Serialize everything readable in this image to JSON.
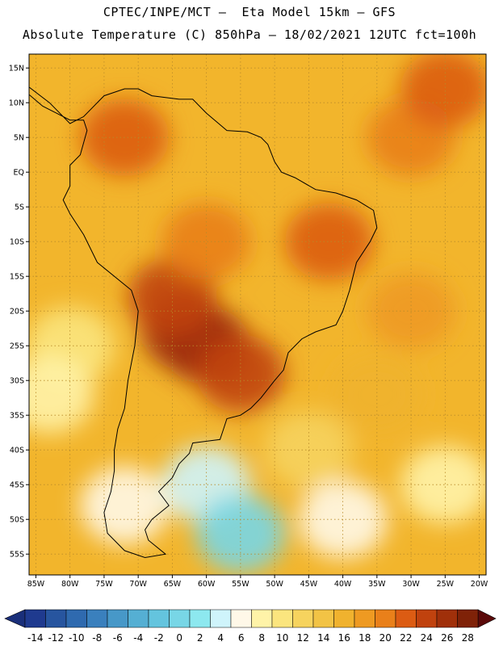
{
  "header": {
    "line1": "CPTEC/INPE/MCT –  Eta Model 15km – GFS",
    "line2": "Absolute Temperature (C) 850hPa – 18/02/2021 12UTC fct=100h"
  },
  "map": {
    "lon_range": [
      -86,
      -19
    ],
    "lat_range": [
      -58,
      17
    ],
    "lon_ticks": [
      {
        "value": -85,
        "label": "85W"
      },
      {
        "value": -80,
        "label": "80W"
      },
      {
        "value": -75,
        "label": "75W"
      },
      {
        "value": -70,
        "label": "70W"
      },
      {
        "value": -65,
        "label": "65W"
      },
      {
        "value": -60,
        "label": "60W"
      },
      {
        "value": -55,
        "label": "55W"
      },
      {
        "value": -50,
        "label": "50W"
      },
      {
        "value": -45,
        "label": "45W"
      },
      {
        "value": -40,
        "label": "40W"
      },
      {
        "value": -35,
        "label": "35W"
      },
      {
        "value": -30,
        "label": "30W"
      },
      {
        "value": -25,
        "label": "25W"
      },
      {
        "value": -20,
        "label": "20W"
      }
    ],
    "lat_ticks": [
      {
        "value": 15,
        "label": "15N"
      },
      {
        "value": 10,
        "label": "10N"
      },
      {
        "value": 5,
        "label": "5N"
      },
      {
        "value": 0,
        "label": "EQ"
      },
      {
        "value": -5,
        "label": "5S"
      },
      {
        "value": -10,
        "label": "10S"
      },
      {
        "value": -15,
        "label": "15S"
      },
      {
        "value": -20,
        "label": "20S"
      },
      {
        "value": -25,
        "label": "25S"
      },
      {
        "value": -30,
        "label": "30S"
      },
      {
        "value": -35,
        "label": "35S"
      },
      {
        "value": -40,
        "label": "40S"
      },
      {
        "value": -45,
        "label": "45S"
      },
      {
        "value": -50,
        "label": "50S"
      },
      {
        "value": -55,
        "label": "55S"
      }
    ],
    "grid": true,
    "coastline": [
      [
        -87,
        13
      ],
      [
        -83,
        10
      ],
      [
        -80,
        7
      ],
      [
        -78,
        8
      ],
      [
        -77,
        9
      ],
      [
        -75,
        11
      ],
      [
        -72,
        12
      ],
      [
        -70,
        12
      ],
      [
        -68,
        11
      ],
      [
        -64,
        10.5
      ],
      [
        -62,
        10.5
      ],
      [
        -60,
        8.5
      ],
      [
        -57,
        6
      ],
      [
        -54,
        5.8
      ],
      [
        -52,
        5
      ],
      [
        -51,
        4
      ],
      [
        -50,
        1.5
      ],
      [
        -49,
        0
      ],
      [
        -47,
        -0.8
      ],
      [
        -44,
        -2.5
      ],
      [
        -41,
        -3
      ],
      [
        -38,
        -4
      ],
      [
        -35.5,
        -5.5
      ],
      [
        -35,
        -8
      ],
      [
        -36,
        -10
      ],
      [
        -38,
        -13
      ],
      [
        -39,
        -17
      ],
      [
        -40,
        -20
      ],
      [
        -41,
        -22
      ],
      [
        -44,
        -23
      ],
      [
        -46,
        -24
      ],
      [
        -48,
        -26
      ],
      [
        -48.7,
        -28.5
      ],
      [
        -50,
        -30
      ],
      [
        -52,
        -32.5
      ],
      [
        -53.5,
        -34
      ],
      [
        -55,
        -35
      ],
      [
        -57,
        -35.5
      ],
      [
        -57.5,
        -37
      ],
      [
        -58,
        -38.5
      ],
      [
        -62,
        -39
      ],
      [
        -62.5,
        -40.5
      ],
      [
        -64,
        -42
      ],
      [
        -65,
        -44
      ],
      [
        -67,
        -46
      ],
      [
        -65.5,
        -48
      ],
      [
        -68,
        -50
      ],
      [
        -69,
        -51.5
      ],
      [
        -68.5,
        -53
      ],
      [
        -66,
        -55
      ],
      [
        -69,
        -55.5
      ],
      [
        -72,
        -54.5
      ],
      [
        -74.5,
        -52
      ],
      [
        -75,
        -49
      ],
      [
        -74,
        -46
      ],
      [
        -73.5,
        -43
      ],
      [
        -73.5,
        -40
      ],
      [
        -73,
        -37
      ],
      [
        -72,
        -34
      ],
      [
        -71.5,
        -30
      ],
      [
        -70.5,
        -25
      ],
      [
        -70,
        -20
      ],
      [
        -71,
        -17
      ],
      [
        -76,
        -13
      ],
      [
        -78,
        -9
      ],
      [
        -80,
        -6
      ],
      [
        -81,
        -4
      ],
      [
        -80,
        -2
      ],
      [
        -80,
        1
      ],
      [
        -78.5,
        2.5
      ],
      [
        -77.5,
        6
      ],
      [
        -78,
        7.5
      ],
      [
        -80,
        7.5
      ],
      [
        -82,
        8.5
      ],
      [
        -84,
        9.5
      ],
      [
        -87,
        12
      ]
    ]
  },
  "colorbar": {
    "labels": [
      "-14",
      "-12",
      "-10",
      "-8",
      "-6",
      "-4",
      "-2",
      "0",
      "2",
      "4",
      "6",
      "8",
      "10",
      "12",
      "14",
      "16",
      "18",
      "20",
      "22",
      "24",
      "26",
      "28"
    ],
    "colors": {
      "min_arrow": "#1a2f7a",
      "max_arrow": "#5b0a0a",
      "bins": [
        "#1f3a8f",
        "#27559f",
        "#2f6aaf",
        "#3a80bd",
        "#4798c8",
        "#55afd3",
        "#64c4de",
        "#78d6e6",
        "#8de8ef",
        "#cff4fb",
        "#fff8e8",
        "#fff3a8",
        "#fbe57e",
        "#f6d35e",
        "#f2c345",
        "#f0b22e",
        "#ee9a22",
        "#e9801a",
        "#dc5c13",
        "#c0420e",
        "#a0300a",
        "#7f2208"
      ]
    }
  },
  "chart_data": {
    "type": "heatmap",
    "variable": "Absolute Temperature (C) 850hPa",
    "colorbar_levels": [
      -14,
      -12,
      -10,
      -8,
      -6,
      -4,
      -2,
      0,
      2,
      4,
      6,
      8,
      10,
      12,
      14,
      16,
      18,
      20,
      22,
      24,
      26,
      28
    ],
    "xlim": [
      -86,
      -19
    ],
    "ylim": [
      -58,
      17
    ],
    "fields": [
      {
        "lon": -60,
        "lat": -25,
        "value": 24
      },
      {
        "lon": -63,
        "lat": -23,
        "value": 24
      },
      {
        "lon": -55,
        "lat": -29,
        "value": 22
      },
      {
        "lon": -65,
        "lat": -18,
        "value": 22
      },
      {
        "lon": -60,
        "lat": -10,
        "value": 18
      },
      {
        "lon": -42,
        "lat": -10,
        "value": 20
      },
      {
        "lon": -72,
        "lat": 5,
        "value": 20
      },
      {
        "lon": -30,
        "lat": 5,
        "value": 18
      },
      {
        "lon": -25,
        "lat": 12,
        "value": 20
      },
      {
        "lon": -30,
        "lat": -20,
        "value": 16
      },
      {
        "lon": -35,
        "lat": -32,
        "value": 14
      },
      {
        "lon": -45,
        "lat": -40,
        "value": 10
      },
      {
        "lon": -80,
        "lat": -25,
        "value": 8
      },
      {
        "lon": -83,
        "lat": -32,
        "value": 6
      },
      {
        "lon": -60,
        "lat": -45,
        "value": 2
      },
      {
        "lon": -55,
        "lat": -52,
        "value": -2
      },
      {
        "lon": -72,
        "lat": -48,
        "value": 4
      },
      {
        "lon": -40,
        "lat": -50,
        "value": 4
      },
      {
        "lon": -25,
        "lat": -45,
        "value": 6
      }
    ]
  }
}
